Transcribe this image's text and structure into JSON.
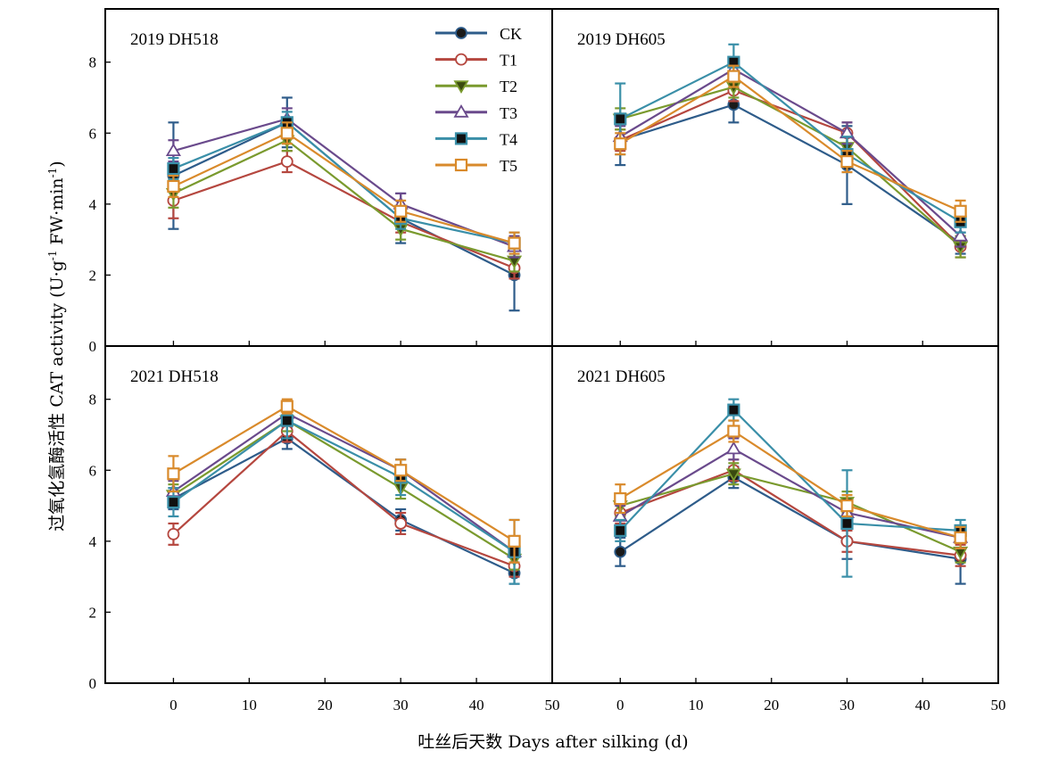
{
  "chart_data": {
    "type": "line",
    "xlabel": "吐丝后天数 Days after silking (d)",
    "ylabel": {
      "prefix": "过氧化氢酶活性 CAT activity (U·g",
      "sup1": "-1",
      "middle": " FW·min",
      "sup2": "-1",
      "suffix": ")"
    },
    "x_ticks": [
      0,
      10,
      20,
      30,
      40,
      50
    ],
    "y_ticks": [
      0,
      2,
      4,
      6,
      8
    ],
    "xlim": [
      -9,
      50
    ],
    "ylim": [
      0,
      9.5
    ],
    "legend_position": "top-right of upper-left panel",
    "series_styles": [
      {
        "name": "CK",
        "color": "#2E5C8A",
        "marker": "circle",
        "fill": "#1a1a1a"
      },
      {
        "name": "T1",
        "color": "#B5473F",
        "marker": "circle",
        "fill": "#ffffff"
      },
      {
        "name": "T2",
        "color": "#7A9A2E",
        "marker": "triangle-down",
        "fill": "#3a4a10"
      },
      {
        "name": "T3",
        "color": "#6A4A8C",
        "marker": "triangle-up",
        "fill": "#ffffff"
      },
      {
        "name": "T4",
        "color": "#3A8FA8",
        "marker": "square",
        "fill": "#111111"
      },
      {
        "name": "T5",
        "color": "#D98A2B",
        "marker": "square",
        "fill": "#ffffff"
      }
    ],
    "panels": [
      {
        "title": "2019 DH518",
        "x": [
          0,
          15,
          30,
          45
        ],
        "series": [
          {
            "name": "CK",
            "values": [
              4.8,
              6.3,
              3.6,
              2.0
            ],
            "errors": [
              1.5,
              0.7,
              0.7,
              1.0
            ]
          },
          {
            "name": "T1",
            "values": [
              4.1,
              5.2,
              3.5,
              2.2
            ],
            "errors": [
              0.5,
              0.3,
              0.3,
              0.3
            ]
          },
          {
            "name": "T2",
            "values": [
              4.3,
              5.8,
              3.3,
              2.4
            ],
            "errors": [
              0.4,
              0.3,
              0.3,
              0.3
            ]
          },
          {
            "name": "T3",
            "values": [
              5.5,
              6.4,
              4.0,
              2.8
            ],
            "errors": [
              0.3,
              0.3,
              0.3,
              0.3
            ]
          },
          {
            "name": "T4",
            "values": [
              5.0,
              6.3,
              3.6,
              2.9
            ],
            "errors": [
              0.3,
              0.3,
              0.3,
              0.3
            ]
          },
          {
            "name": "T5",
            "values": [
              4.5,
              6.0,
              3.8,
              2.9
            ],
            "errors": [
              0.3,
              0.3,
              0.3,
              0.3
            ]
          }
        ]
      },
      {
        "title": "2019 DH605",
        "x": [
          0,
          15,
          30,
          45
        ],
        "series": [
          {
            "name": "CK",
            "values": [
              5.8,
              6.8,
              5.1,
              2.9
            ],
            "errors": [
              0.7,
              0.5,
              1.1,
              0.3
            ]
          },
          {
            "name": "T1",
            "values": [
              5.8,
              7.2,
              6.0,
              2.8
            ],
            "errors": [
              0.3,
              0.3,
              0.3,
              0.3
            ]
          },
          {
            "name": "T2",
            "values": [
              6.4,
              7.3,
              5.6,
              2.8
            ],
            "errors": [
              0.3,
              0.3,
              0.3,
              0.3
            ]
          },
          {
            "name": "T3",
            "values": [
              5.9,
              7.8,
              6.0,
              3.1
            ],
            "errors": [
              0.3,
              0.3,
              0.3,
              0.3
            ]
          },
          {
            "name": "T4",
            "values": [
              6.4,
              8.0,
              5.4,
              3.5
            ],
            "errors": [
              1.0,
              0.5,
              0.5,
              0.3
            ]
          },
          {
            "name": "T5",
            "values": [
              5.7,
              7.6,
              5.2,
              3.8
            ],
            "errors": [
              0.3,
              0.3,
              0.3,
              0.3
            ]
          }
        ]
      },
      {
        "title": "2021 DH518",
        "x": [
          0,
          15,
          30,
          45
        ],
        "series": [
          {
            "name": "CK",
            "values": [
              5.2,
              6.9,
              4.6,
              3.1
            ],
            "errors": [
              0.3,
              0.3,
              0.3,
              0.3
            ]
          },
          {
            "name": "T1",
            "values": [
              4.2,
              7.1,
              4.5,
              3.3
            ],
            "errors": [
              0.3,
              0.3,
              0.3,
              0.3
            ]
          },
          {
            "name": "T2",
            "values": [
              5.3,
              7.4,
              5.5,
              3.5
            ],
            "errors": [
              0.3,
              0.3,
              0.3,
              0.3
            ]
          },
          {
            "name": "T3",
            "values": [
              5.4,
              7.6,
              6.0,
              3.7
            ],
            "errors": [
              0.3,
              0.3,
              0.3,
              0.3
            ]
          },
          {
            "name": "T4",
            "values": [
              5.1,
              7.4,
              5.8,
              3.7
            ],
            "errors": [
              0.4,
              0.5,
              0.5,
              0.9
            ]
          },
          {
            "name": "T5",
            "values": [
              5.9,
              7.8,
              6.0,
              4.0
            ],
            "errors": [
              0.5,
              0.2,
              0.3,
              0.6
            ]
          }
        ]
      },
      {
        "title": "2021 DH605",
        "x": [
          0,
          15,
          30,
          45
        ],
        "series": [
          {
            "name": "CK",
            "values": [
              3.7,
              5.8,
              4.0,
              3.5
            ],
            "errors": [
              0.4,
              0.3,
              0.5,
              0.7
            ]
          },
          {
            "name": "T1",
            "values": [
              4.8,
              6.0,
              4.0,
              3.6
            ],
            "errors": [
              0.3,
              0.3,
              0.3,
              0.3
            ]
          },
          {
            "name": "T2",
            "values": [
              5.0,
              5.9,
              5.1,
              3.7
            ],
            "errors": [
              0.3,
              0.3,
              0.3,
              0.3
            ]
          },
          {
            "name": "T3",
            "values": [
              4.7,
              6.6,
              4.8,
              4.1
            ],
            "errors": [
              0.3,
              0.3,
              0.3,
              0.3
            ]
          },
          {
            "name": "T4",
            "values": [
              4.3,
              7.7,
              4.5,
              4.3
            ],
            "errors": [
              0.3,
              0.3,
              1.5,
              0.3
            ]
          },
          {
            "name": "T5",
            "values": [
              5.2,
              7.1,
              5.0,
              4.1
            ],
            "errors": [
              0.4,
              0.3,
              0.3,
              0.3
            ]
          }
        ]
      }
    ]
  }
}
